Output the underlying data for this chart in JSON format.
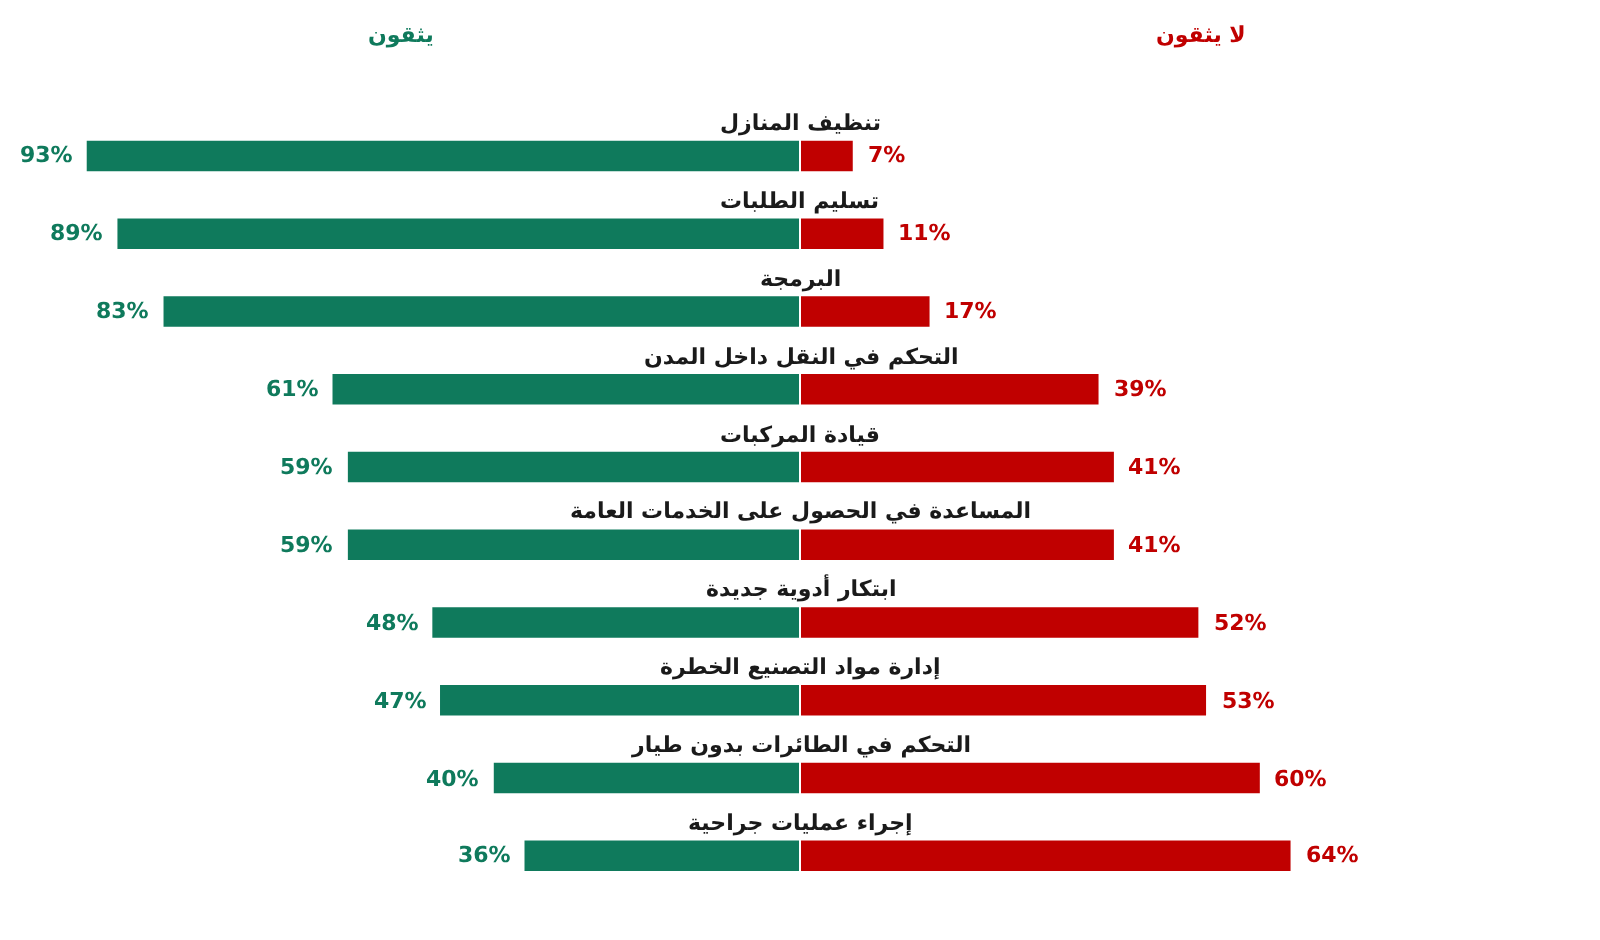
{
  "chart_data": [
    {
      "type": "bar",
      "orientation": "horizontal",
      "categories": [
        "تنظيف المنازل",
        "تسليم الطلبات",
        "البرمجة",
        "التحكم في النقل داخل المدن",
        "قيادة المركبات",
        "المساعدة في الحصول على الخدمات العامة",
        "ابتكار أدوية جديدة",
        "إدارة مواد التصنيع الخطرة",
        "التحكم في الطائرات بدون طيار",
        "إجراء عمليات جراحية"
      ],
      "series": [
        {
          "name": "يثقون",
          "color": "#0f7a5c",
          "values": [
            93,
            89,
            83,
            61,
            59,
            59,
            48,
            47,
            40,
            36
          ],
          "value_labels": [
            "93%",
            "89%",
            "83%",
            "61%",
            "59%",
            "59%",
            "48%",
            "47%",
            "40%",
            "36%"
          ]
        }
      ],
      "tick_labels": "y"
    },
    {
      "type": "bar",
      "orientation": "horizontal",
      "categories": [
        null,
        null,
        null,
        null,
        null,
        null,
        null,
        null,
        null,
        null
      ],
      "series": [
        {
          "name": "لا يثقون",
          "color": "#c00000",
          "values": [
            7,
            11,
            17,
            39,
            41,
            41,
            52,
            53,
            60,
            64
          ],
          "value_labels": [
            "7%",
            "11%",
            "17%",
            "39%",
            "41%",
            "41%",
            "52%",
            "53%",
            "60%",
            "64%"
          ]
        }
      ],
      "tick_labels": false
    }
  ]
}
